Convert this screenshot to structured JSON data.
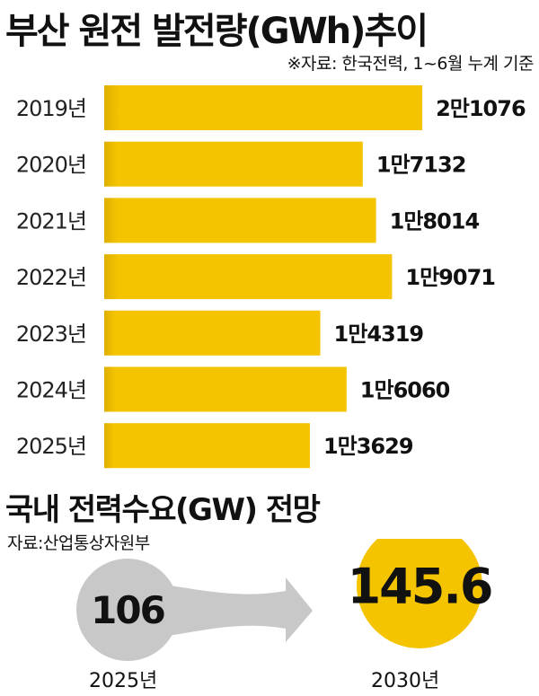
{
  "title": "부산 원전 발전량(GWh)추이",
  "source_note": "※자료: 한국전력, 1~6월 누계 기준",
  "chart_data": [
    {
      "type": "bar",
      "orientation": "horizontal",
      "title": "부산 원전 발전량(GWh)추이",
      "categories": [
        "2019년",
        "2020년",
        "2021년",
        "2022년",
        "2023년",
        "2024년",
        "2025년"
      ],
      "values": [
        21076,
        17132,
        18014,
        19071,
        14319,
        16060,
        13629
      ],
      "value_labels": [
        "2만1076",
        "1만7132",
        "1만8014",
        "1만9071",
        "1만4319",
        "1만6060",
        "1만3629"
      ],
      "bar_color": "#F5C400",
      "bar_shade_color": "#DDAF00",
      "grid": false,
      "legend": "none"
    },
    {
      "type": "bubble-comparison",
      "title": "국내 전력수요(GW) 전망",
      "categories": [
        "2025년",
        "2030년"
      ],
      "values": [
        106,
        145.6
      ],
      "value_labels": [
        "106",
        "145.6"
      ],
      "colors": [
        "#C8C8C8",
        "#F5C400"
      ],
      "arrow_color": "#C8C8C8"
    }
  ],
  "section2": {
    "title": "국내 전력수요(GW) 전망",
    "source_note": "자료:산업통상자원부"
  }
}
